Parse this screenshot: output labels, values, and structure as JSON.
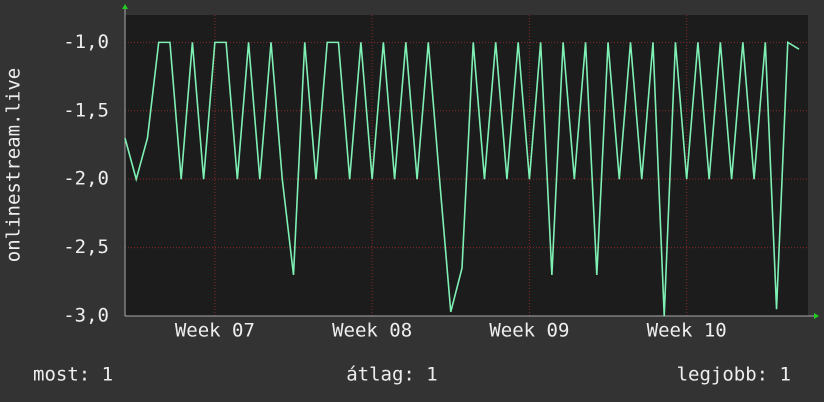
{
  "chart_data": {
    "type": "line",
    "ylabel": "onlinestream.live",
    "x": [
      0,
      0.5,
      1,
      1.5,
      2,
      2.5,
      3,
      3.5,
      4,
      4.5,
      5,
      5.5,
      6,
      6.5,
      7,
      7.5,
      8,
      8.5,
      9,
      9.5,
      10,
      10.5,
      11,
      11.5,
      12,
      12.5,
      13,
      13.5,
      14,
      14.5,
      15,
      15.5,
      16,
      16.5,
      17,
      17.5,
      18,
      18.5,
      19,
      19.5,
      20,
      20.5,
      21,
      21.5,
      22,
      22.5,
      23,
      23.5,
      24,
      24.5,
      25,
      25.5,
      26,
      26.5,
      27,
      27.5,
      28,
      28.5,
      29,
      29.5,
      30
    ],
    "series": [
      {
        "color": "#7ff0b4",
        "values": [
          -1.7,
          -2.0,
          -1.7,
          -1.0,
          -1.0,
          -2.0,
          -1.0,
          -2.0,
          -1.0,
          -1.0,
          -2.0,
          -1.0,
          -2.0,
          -1.0,
          -2.0,
          -2.7,
          -1.0,
          -2.0,
          -1.0,
          -1.0,
          -2.0,
          -1.0,
          -2.0,
          -1.0,
          -2.0,
          -1.0,
          -2.0,
          -1.0,
          -2.0,
          -2.97,
          -2.65,
          -1.0,
          -2.0,
          -1.0,
          -2.0,
          -1.0,
          -2.0,
          -1.0,
          -2.7,
          -1.0,
          -2.0,
          -1.0,
          -2.7,
          -1.0,
          -2.0,
          -1.0,
          -2.0,
          -1.0,
          -3.0,
          -1.0,
          -2.0,
          -1.0,
          -2.0,
          -1.0,
          -2.0,
          -1.0,
          -2.0,
          -1.0,
          -2.95,
          -1.0,
          -1.05
        ]
      }
    ],
    "xlim": [
      0,
      30.4
    ],
    "xticks": [
      {
        "value": 4,
        "label": "Week 07"
      },
      {
        "value": 11,
        "label": "Week 08"
      },
      {
        "value": 18,
        "label": "Week 09"
      },
      {
        "value": 25,
        "label": "Week 10"
      }
    ],
    "ylim": [
      -3,
      -0.8
    ],
    "yticks": [
      {
        "value": -3,
        "label": "-3,0"
      },
      {
        "value": -2.5,
        "label": "-2,5"
      },
      {
        "value": -2,
        "label": "-2,0"
      },
      {
        "value": -1.5,
        "label": "-1,5"
      },
      {
        "value": -1,
        "label": "-1,0"
      }
    ],
    "grid": true,
    "annotations": [
      "most: 1",
      "átlag: 1",
      "legjobb: 1"
    ]
  }
}
